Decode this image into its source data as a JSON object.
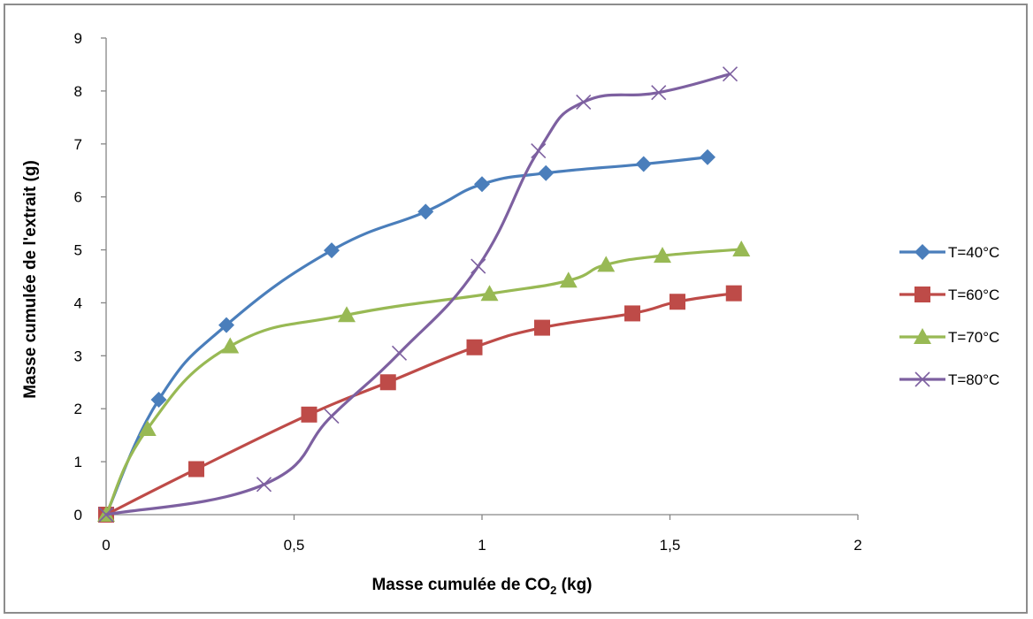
{
  "chart_data": {
    "type": "line",
    "title": "",
    "xlabel_main": "Masse cumulée de CO",
    "xlabel_sub": "2",
    "xlabel_unit": " (kg)",
    "ylabel": "Masse cumulée de l'extrait (g)",
    "xlim": [
      0,
      2
    ],
    "ylim": [
      0,
      9
    ],
    "x_ticks": [
      "0",
      "0,5",
      "1",
      "1,5",
      "2"
    ],
    "x_tick_values": [
      0,
      0.5,
      1,
      1.5,
      2
    ],
    "y_ticks": [
      "0",
      "1",
      "2",
      "3",
      "4",
      "5",
      "6",
      "7",
      "8",
      "9"
    ],
    "y_tick_values": [
      0,
      1,
      2,
      3,
      4,
      5,
      6,
      7,
      8,
      9
    ],
    "grid": false,
    "legend_position": "right",
    "series": [
      {
        "name": "T=40°C",
        "color": "#4a7ebb",
        "marker": "diamond",
        "points": [
          [
            0,
            0
          ],
          [
            0.14,
            2.17
          ],
          [
            0.32,
            3.58
          ],
          [
            0.6,
            4.99
          ],
          [
            0.85,
            5.72
          ],
          [
            1.0,
            6.24
          ],
          [
            1.17,
            6.45
          ],
          [
            1.43,
            6.62
          ],
          [
            1.6,
            6.75
          ]
        ]
      },
      {
        "name": "T=60°C",
        "color": "#be4b48",
        "marker": "square",
        "points": [
          [
            0,
            0
          ],
          [
            0.24,
            0.86
          ],
          [
            0.54,
            1.89
          ],
          [
            0.75,
            2.5
          ],
          [
            0.98,
            3.16
          ],
          [
            1.16,
            3.53
          ],
          [
            1.4,
            3.8
          ],
          [
            1.52,
            4.02
          ],
          [
            1.67,
            4.18
          ]
        ]
      },
      {
        "name": "T=70°C",
        "color": "#98b954",
        "marker": "triangle",
        "points": [
          [
            0,
            0
          ],
          [
            0.11,
            1.62
          ],
          [
            0.33,
            3.18
          ],
          [
            0.64,
            3.77
          ],
          [
            1.02,
            4.17
          ],
          [
            1.23,
            4.42
          ],
          [
            1.33,
            4.72
          ],
          [
            1.48,
            4.89
          ],
          [
            1.69,
            5.01
          ]
        ]
      },
      {
        "name": "T=80°C",
        "color": "#7d60a0",
        "marker": "x",
        "points": [
          [
            0,
            0
          ],
          [
            0.42,
            0.57
          ],
          [
            0.6,
            1.86
          ],
          [
            0.78,
            3.05
          ],
          [
            0.99,
            4.69
          ],
          [
            1.15,
            6.87
          ],
          [
            1.27,
            7.79
          ],
          [
            1.47,
            7.97
          ],
          [
            1.66,
            8.32
          ]
        ]
      }
    ]
  }
}
